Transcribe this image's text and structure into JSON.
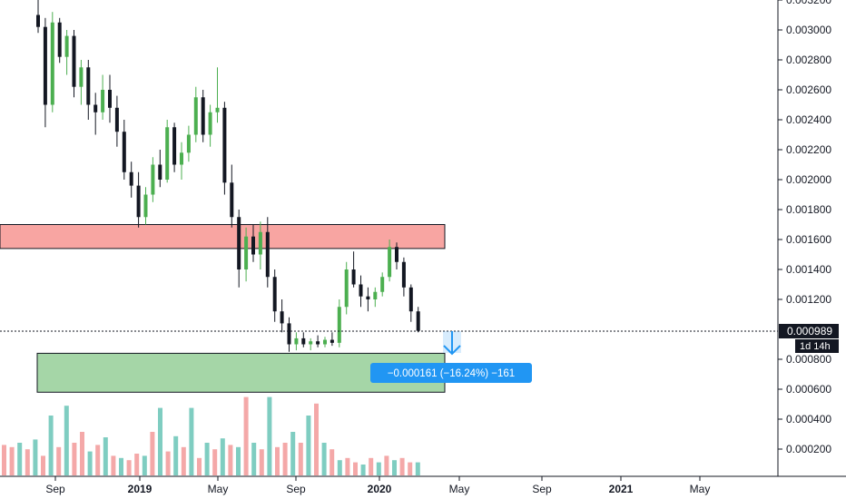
{
  "chart_data": {
    "type": "candlestick",
    "title": "",
    "y_axis": {
      "side": "right",
      "ylim": [
        0.0,
        0.00327
      ],
      "ticks": [
        "0.003200",
        "0.003000",
        "0.002800",
        "0.002600",
        "0.002400",
        "0.002200",
        "0.002000",
        "0.001800",
        "0.001600",
        "0.001400",
        "0.001200",
        "0.000800",
        "0.000600",
        "0.000400",
        "0.000200"
      ]
    },
    "x_axis": {
      "ticks": [
        {
          "label": "Sep",
          "bold": false
        },
        {
          "label": "2019",
          "bold": true
        },
        {
          "label": "May",
          "bold": false
        },
        {
          "label": "Sep",
          "bold": false
        },
        {
          "label": "2020",
          "bold": true
        },
        {
          "label": "May",
          "bold": false
        },
        {
          "label": "Sep",
          "bold": false
        },
        {
          "label": "2021",
          "bold": true
        },
        {
          "label": "May",
          "bold": false
        }
      ]
    },
    "last_price": {
      "label": "0.000989",
      "value": 0.000989,
      "countdown": "1d 14h"
    },
    "measure_label": "−0.000161 (−16.24%) −161",
    "zones": [
      {
        "name": "resistance",
        "from": 0.00154,
        "to": 0.0017,
        "color": "#f8a5a2"
      },
      {
        "name": "support",
        "from": 0.00058,
        "to": 0.00084,
        "color": "#a5d6a7"
      }
    ],
    "colors": {
      "up": "#26a69a",
      "up_candle": "#4caf50",
      "down": "#131722",
      "vol_up": "#7fcdc1",
      "vol_down": "#f4a8a8",
      "measure": "#2196f3"
    },
    "candles": [
      [
        0.0031,
        0.0033,
        0.00298,
        0.00302
      ],
      [
        0.00302,
        0.00308,
        0.00235,
        0.0025
      ],
      [
        0.0025,
        0.00312,
        0.00245,
        0.00305
      ],
      [
        0.00305,
        0.00308,
        0.00278,
        0.00282
      ],
      [
        0.00282,
        0.003,
        0.0027,
        0.00296
      ],
      [
        0.00296,
        0.003,
        0.00255,
        0.00262
      ],
      [
        0.00262,
        0.0028,
        0.0025,
        0.00275
      ],
      [
        0.00275,
        0.0028,
        0.0024,
        0.0025
      ],
      [
        0.0025,
        0.00258,
        0.0023,
        0.00245
      ],
      [
        0.00245,
        0.0027,
        0.0024,
        0.0026
      ],
      [
        0.0026,
        0.0027,
        0.00238,
        0.00248
      ],
      [
        0.00248,
        0.00256,
        0.00222,
        0.00232
      ],
      [
        0.00232,
        0.0024,
        0.002,
        0.00205
      ],
      [
        0.00205,
        0.00212,
        0.00188,
        0.00196
      ],
      [
        0.00196,
        0.00205,
        0.00168,
        0.00175
      ],
      [
        0.00175,
        0.00195,
        0.0017,
        0.0019
      ],
      [
        0.0019,
        0.00215,
        0.00185,
        0.0021
      ],
      [
        0.0021,
        0.0022,
        0.00195,
        0.002
      ],
      [
        0.002,
        0.0024,
        0.00198,
        0.00235
      ],
      [
        0.00235,
        0.00238,
        0.00205,
        0.0021
      ],
      [
        0.0021,
        0.00225,
        0.002,
        0.00218
      ],
      [
        0.00218,
        0.00236,
        0.00212,
        0.0023
      ],
      [
        0.0023,
        0.00262,
        0.00225,
        0.00255
      ],
      [
        0.00255,
        0.0026,
        0.00225,
        0.0023
      ],
      [
        0.0023,
        0.0025,
        0.00222,
        0.00245
      ],
      [
        0.00245,
        0.00275,
        0.00238,
        0.00248
      ],
      [
        0.00248,
        0.00252,
        0.0019,
        0.00198
      ],
      [
        0.00198,
        0.0021,
        0.00168,
        0.00175
      ],
      [
        0.00175,
        0.0018,
        0.00128,
        0.0014
      ],
      [
        0.0014,
        0.00168,
        0.00132,
        0.00162
      ],
      [
        0.00162,
        0.0017,
        0.00145,
        0.0015
      ],
      [
        0.0015,
        0.00172,
        0.0014,
        0.00165
      ],
      [
        0.00165,
        0.00175,
        0.00128,
        0.00135
      ],
      [
        0.00135,
        0.0014,
        0.00105,
        0.00112
      ],
      [
        0.00112,
        0.0012,
        0.00098,
        0.00104
      ],
      [
        0.00104,
        0.00108,
        0.00085,
        0.0009
      ],
      [
        0.0009,
        0.00098,
        0.00086,
        0.00094
      ],
      [
        0.00094,
        0.00098,
        0.00088,
        0.0009
      ],
      [
        0.0009,
        0.00094,
        0.00086,
        0.00092
      ],
      [
        0.00092,
        0.00096,
        0.00088,
        0.0009
      ],
      [
        0.0009,
        0.00095,
        0.00088,
        0.00093
      ],
      [
        0.00093,
        0.00098,
        0.00089,
        0.00091
      ],
      [
        0.00091,
        0.0012,
        0.00088,
        0.00115
      ],
      [
        0.00115,
        0.00145,
        0.0011,
        0.0014
      ],
      [
        0.0014,
        0.00152,
        0.00128,
        0.0013
      ],
      [
        0.0013,
        0.00136,
        0.00115,
        0.00122
      ],
      [
        0.00122,
        0.00128,
        0.00112,
        0.0012
      ],
      [
        0.0012,
        0.00128,
        0.00115,
        0.00125
      ],
      [
        0.00125,
        0.00138,
        0.00122,
        0.00135
      ],
      [
        0.00135,
        0.0016,
        0.00132,
        0.00155
      ],
      [
        0.00155,
        0.00158,
        0.0014,
        0.00145
      ],
      [
        0.00145,
        0.00148,
        0.00122,
        0.00128
      ],
      [
        0.00128,
        0.0013,
        0.00105,
        0.00112
      ],
      [
        0.00112,
        0.00115,
        0.00098,
        0.00099
      ]
    ],
    "volumes": [
      [
        0.28,
        0
      ],
      [
        0.26,
        0
      ],
      [
        0.3,
        1
      ],
      [
        0.24,
        0
      ],
      [
        0.33,
        1
      ],
      [
        0.18,
        0
      ],
      [
        0.55,
        1
      ],
      [
        0.26,
        0
      ],
      [
        0.64,
        1
      ],
      [
        0.3,
        0
      ],
      [
        0.4,
        0
      ],
      [
        0.22,
        1
      ],
      [
        0.28,
        0
      ],
      [
        0.35,
        1
      ],
      [
        0.18,
        0
      ],
      [
        0.16,
        1
      ],
      [
        0.14,
        0
      ],
      [
        0.2,
        0
      ],
      [
        0.18,
        1
      ],
      [
        0.4,
        0
      ],
      [
        0.62,
        1
      ],
      [
        0.22,
        0
      ],
      [
        0.36,
        1
      ],
      [
        0.26,
        0
      ],
      [
        0.62,
        1
      ],
      [
        0.16,
        0
      ],
      [
        0.3,
        1
      ],
      [
        0.24,
        0
      ],
      [
        0.34,
        1
      ],
      [
        0.28,
        0
      ],
      [
        0.26,
        1
      ],
      [
        0.72,
        0
      ],
      [
        0.3,
        1
      ],
      [
        0.24,
        0
      ],
      [
        0.72,
        1
      ],
      [
        0.26,
        0
      ],
      [
        0.3,
        0
      ],
      [
        0.4,
        1
      ],
      [
        0.3,
        0
      ],
      [
        0.55,
        1
      ],
      [
        0.66,
        0
      ],
      [
        0.3,
        1
      ],
      [
        0.24,
        0
      ],
      [
        0.14,
        1
      ],
      [
        0.16,
        0
      ],
      [
        0.12,
        0
      ],
      [
        0.1,
        1
      ],
      [
        0.16,
        0
      ],
      [
        0.12,
        1
      ],
      [
        0.18,
        0
      ],
      [
        0.14,
        1
      ],
      [
        0.16,
        0
      ],
      [
        0.12,
        0
      ],
      [
        0.12,
        1
      ]
    ]
  }
}
